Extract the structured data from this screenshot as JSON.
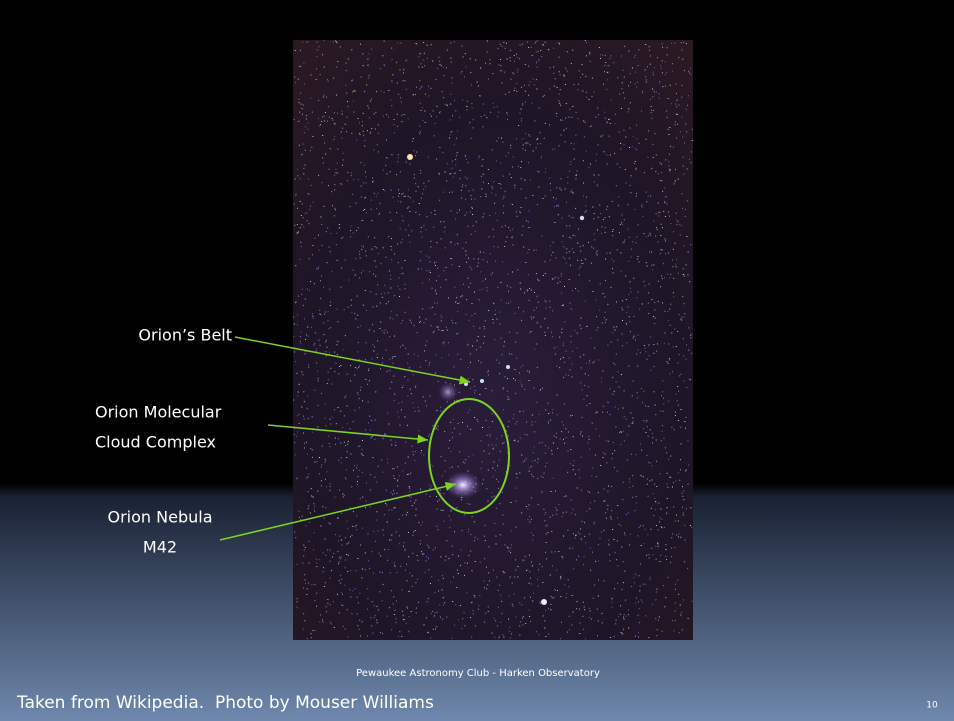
{
  "labels": {
    "belt": "Orion’s Belt",
    "cloud": [
      "Orion Molecular",
      "Cloud Complex"
    ],
    "nebula": [
      "Orion Nebula",
      "M42"
    ]
  },
  "footer": {
    "center": "Pewaukee Astronomy Club - Harken Observatory",
    "caption": "Taken from Wikipedia.  Photo by Mouser Williams",
    "page": "10"
  }
}
